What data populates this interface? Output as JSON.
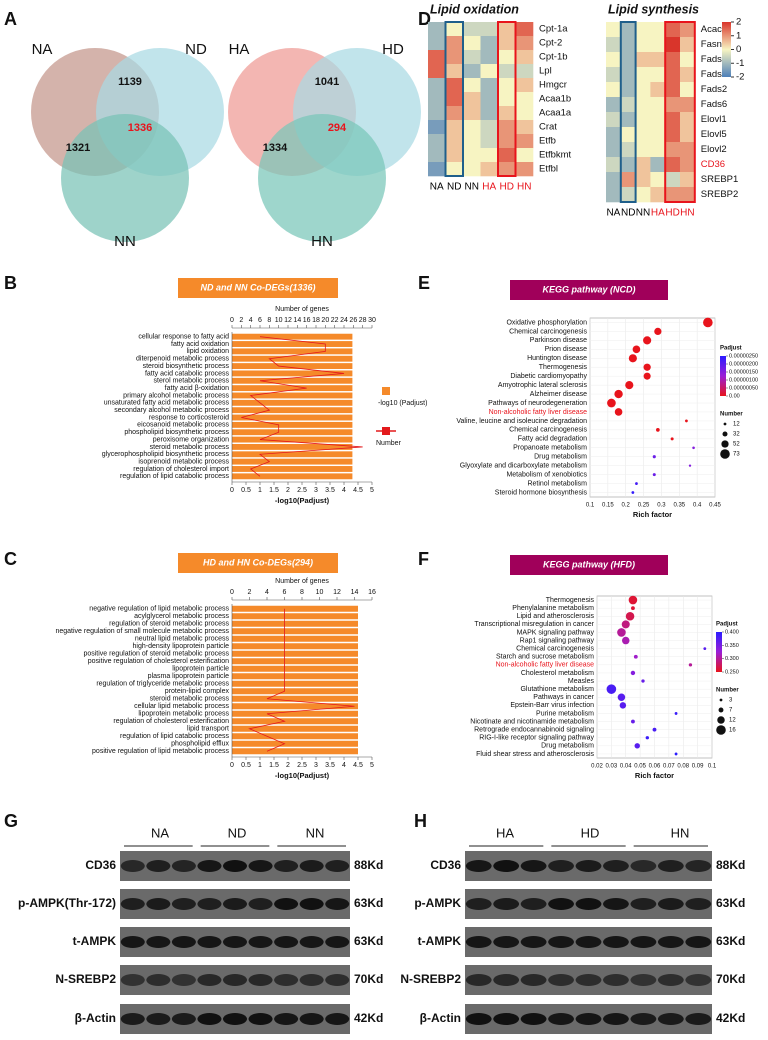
{
  "figure": {
    "panels": [
      "A",
      "B",
      "C",
      "D",
      "E",
      "F",
      "G",
      "H"
    ]
  },
  "venn": [
    {
      "labels": [
        "NA",
        "ND",
        "NN"
      ],
      "values": [
        1139,
        1336,
        1321
      ],
      "colors": [
        "#c4968a",
        "#a9d9e3",
        "#79c2b5"
      ],
      "center_color": "#e8141c"
    },
    {
      "labels": [
        "HA",
        "HD",
        "HN"
      ],
      "values": [
        1041,
        294,
        1334
      ],
      "colors": [
        "#ef9a94",
        "#a9d9e3",
        "#79c6b9"
      ],
      "center_color": "#e8141c"
    }
  ],
  "heatmaps": {
    "columns": [
      "NA",
      "ND",
      "NN",
      "HA",
      "HD",
      "HN"
    ],
    "column_colors": [
      "#000000",
      "#000000",
      "#000000",
      "#e8141c",
      "#e8141c",
      "#e8141c"
    ],
    "clim": [
      -2,
      2
    ],
    "cticks": [
      2,
      1,
      0,
      -1,
      -2
    ],
    "colormap": [
      "#4d7fb8",
      "#f7f4c2",
      "#d9352b"
    ],
    "maps": [
      {
        "title": "Lipid oxidation",
        "rows": [
          "Cpt-1a",
          "Cpt-2",
          "Cpt-1b",
          "Lpl",
          "Hmgcr",
          "Acaa1b",
          "Acaa1a",
          "Crat",
          "Etfb",
          "Etfbkmt",
          "Etfbl"
        ],
        "values": [
          [
            -1,
            0,
            -0.5,
            -0.5,
            0.5,
            1.5
          ],
          [
            -1,
            1,
            0,
            -1,
            0.5,
            1
          ],
          [
            1.5,
            1,
            -0.5,
            -1,
            0,
            0.5
          ],
          [
            1.5,
            0.5,
            -1,
            0,
            -0.5,
            -0.5
          ],
          [
            -1,
            1.5,
            0,
            -1,
            0,
            0.5
          ],
          [
            -1,
            1.5,
            0.5,
            -1,
            0,
            0
          ],
          [
            -1,
            1,
            0.5,
            -1,
            0.5,
            0
          ],
          [
            -1.5,
            0.5,
            0,
            -0.5,
            1,
            0.5
          ],
          [
            -1,
            0.5,
            0,
            -0.5,
            1,
            1
          ],
          [
            -1,
            0.5,
            0,
            0,
            1.5,
            0
          ],
          [
            -1.5,
            0,
            0,
            0.5,
            1,
            1
          ]
        ]
      },
      {
        "title": "Lipid synthesis",
        "rows": [
          "Acaca",
          "Fasn",
          "Fads1",
          "Fads3",
          "Fads2",
          "Fads6",
          "Elovl1",
          "Elovl5",
          "Elovl2",
          "CD36",
          "SREBP1",
          "SREBP2"
        ],
        "values": [
          [
            0,
            -1,
            0,
            0,
            1.5,
            1
          ],
          [
            -0.5,
            -1,
            0,
            0,
            2,
            0.5
          ],
          [
            0,
            -1,
            0.5,
            0.5,
            1.5,
            0
          ],
          [
            -0.5,
            -1,
            0,
            0,
            1.5,
            0.5
          ],
          [
            0,
            -1,
            0,
            0.5,
            1.5,
            0
          ],
          [
            -1,
            -0.5,
            0,
            0,
            1,
            1
          ],
          [
            -0.5,
            -1,
            0,
            0,
            1.5,
            0.5
          ],
          [
            -1,
            0,
            0,
            0,
            1.5,
            0.5
          ],
          [
            -1,
            -0.5,
            0,
            0,
            1,
            1
          ],
          [
            -0.5,
            -1,
            0.5,
            -1,
            1.5,
            1
          ],
          [
            -1,
            1,
            0.5,
            0,
            -0.5,
            0.5
          ],
          [
            -1,
            -0.5,
            0,
            0.5,
            1,
            1
          ]
        ],
        "highlight_index": 9,
        "highlight_color": "#e8141c"
      }
    ]
  },
  "chart_data": [
    {
      "type": "bar",
      "orientation": "horizontal",
      "title": "ND and NN Co-DEGs(1336)",
      "title_color": "#f58a2a",
      "categories": [
        "cellular response to fatty acid",
        "fatty acid oxidation",
        "lipid oxidation",
        "diterpenoid metabolic process",
        "steroid biosynthetic process",
        "fatty acid catabolic process",
        "sterol metabolic process",
        "fatty acid β-oxidation",
        "primary alcohol metabolic process",
        "unsaturated fatty acid metabolic process",
        "secondary alcohol metabolic process",
        "response to corticosteroid",
        "eicosanoid metabolic process",
        "phospholipid biosynthetic process",
        "peroxisome organization",
        "steroid metabolic process",
        "glycerophospholipid biosynthetic process",
        "isoprenoid metabolic process",
        "regulation of cholesterol import",
        "regulation of lipid catabolic process"
      ],
      "series": [
        {
          "name": "-log10 (Padjust)",
          "color": "#f58a2a",
          "values": [
            4.3,
            4.3,
            4.3,
            4.3,
            4.3,
            4.3,
            4.3,
            4.3,
            4.3,
            4.3,
            4.3,
            4.3,
            4.3,
            4.3,
            4.3,
            4.3,
            4.3,
            4.3,
            4.3,
            4.3
          ]
        },
        {
          "name": "Number",
          "color": "#e31a1c",
          "axis": "x2",
          "values": [
            6,
            20,
            20,
            8,
            10,
            24,
            6,
            16,
            4,
            6,
            8,
            2,
            10,
            10,
            6,
            28,
            6,
            8,
            4,
            6
          ]
        }
      ],
      "xlim": [
        0,
        5
      ],
      "xticks": [
        0,
        0.5,
        1,
        1.5,
        2,
        2.5,
        3,
        3.5,
        4,
        4.5,
        5
      ],
      "xlabel": "-log10(Padjust)",
      "x2lim": [
        0,
        30
      ],
      "x2ticks": [
        0,
        2,
        4,
        6,
        8,
        10,
        12,
        14,
        16,
        18,
        20,
        22,
        24,
        26,
        28,
        30
      ],
      "x2label": "Number of genes",
      "legend": true
    },
    {
      "type": "bar",
      "orientation": "horizontal",
      "title": "HD and HN Co-DEGs(294)",
      "title_color": "#f58a2a",
      "categories": [
        "negative regulation of lipid metabolic process",
        "acylglycerol metabolic process",
        "regulation of steroid metabolic process",
        "negative regulation of small molecule metabolic process",
        "neutral lipid metabolic process",
        "high-density lipoprotein particle",
        "positive regulation of steroid metabolic process",
        "positive regulation of cholesterol esterification",
        "lipoprotein particle",
        "plasma lipoprotein particle",
        "regulation of triglyceride metabolic process",
        "protein-lipid complex",
        "steroid metabolic process",
        "cellular lipid metabolic process",
        "lipoprotein metabolic process",
        "regulation of cholesterol esterification",
        "lipid transport",
        "regulation of lipid catabolic process",
        "phospholipid efflux",
        "positive regulation of lipid metabolic process"
      ],
      "series": [
        {
          "name": "-log10 (Padjust)",
          "color": "#f58a2a",
          "values": [
            4.5,
            4.5,
            4.5,
            4.5,
            4.5,
            4.5,
            4.5,
            4.5,
            4.5,
            4.5,
            4.5,
            4.5,
            4.5,
            4.5,
            4.5,
            4.5,
            4.5,
            4.5,
            4.5,
            4.5
          ]
        },
        {
          "name": "Number",
          "color": "#e31a1c",
          "axis": "x2",
          "values": [
            6,
            6,
            6,
            6,
            6,
            6,
            6,
            6,
            6,
            6,
            6,
            6,
            4,
            14,
            4,
            6,
            2,
            4,
            6,
            4
          ]
        }
      ],
      "xlim": [
        0,
        5
      ],
      "xticks": [
        0,
        0.5,
        1,
        1.5,
        2,
        2.5,
        3,
        3.5,
        4,
        4.5,
        5
      ],
      "xlabel": "-log10(Padjust)",
      "x2lim": [
        0,
        16
      ],
      "x2ticks": [
        0,
        2,
        4,
        6,
        8,
        10,
        12,
        14,
        16
      ],
      "x2label": "Number of genes",
      "legend": false
    },
    {
      "type": "scatter",
      "title": "KEGG pathway (NCD)",
      "title_color": "#a0005a",
      "categories": [
        "Oxidative phosphorylation",
        "Chemical carcinogenesis",
        "Parkinson disease",
        "Prion disease",
        "Huntington disease",
        "Thermogenesis",
        "Diabetic cardiomyopathy",
        "Amyotrophic lateral sclerosis",
        "Alzheimer disease",
        "Pathways of neurodegeneration",
        "Non-alcoholic fatty liver disease",
        "Valine, leucine and isoleucine degradation",
        "Chemical carcinogenesis",
        "Fatty acid degradation",
        "Propanoate metabolism",
        "Drug metabolism",
        "Glyoxylate and dicarboxylate metabolism",
        "Metabolism of xenobiotics",
        "Retinol metabolism",
        "Steroid hormone biosynthesis"
      ],
      "x": [
        0.43,
        0.29,
        0.26,
        0.23,
        0.22,
        0.26,
        0.26,
        0.21,
        0.18,
        0.16,
        0.18,
        0.37,
        0.29,
        0.33,
        0.39,
        0.28,
        0.38,
        0.28,
        0.23,
        0.22
      ],
      "sizes": [
        73,
        52,
        60,
        55,
        60,
        52,
        50,
        60,
        62,
        65,
        55,
        12,
        20,
        14,
        10,
        15,
        8,
        14,
        12,
        12
      ],
      "padjust": [
        0,
        0,
        0,
        0,
        0,
        0,
        0,
        0,
        0,
        0,
        0,
        0,
        0,
        0,
        1.5e-06,
        1.8e-06,
        1.5e-06,
        1.8e-06,
        2.2e-06,
        2.4e-06
      ],
      "xlim": [
        0.1,
        0.45
      ],
      "xticks": [
        0.1,
        0.15,
        0.2,
        0.25,
        0.3,
        0.35,
        0.4,
        0.45
      ],
      "xlabel": "Rich factor",
      "grid": true,
      "highlight_index": 10,
      "highlight_color": "#e8141c",
      "color_legend": {
        "title": "Padjust",
        "lim": [
          0,
          2.5e-06
        ],
        "colormap": [
          "#e8141c",
          "#9b1fd6",
          "#2b1cff"
        ],
        "ticks": [
          {
            "value": 2.5e-06,
            "label": "0.00000250"
          },
          {
            "value": 2e-06,
            "label": "0.00000200"
          },
          {
            "value": 1.5e-06,
            "label": "0.00000150"
          },
          {
            "value": 1e-06,
            "label": "0.00000100"
          },
          {
            "value": 5e-07,
            "label": "0.00000050"
          },
          {
            "value": 0,
            "label": "0.00"
          }
        ]
      },
      "size_legend": {
        "title": "Number",
        "values": [
          12,
          32,
          52,
          73
        ]
      }
    },
    {
      "type": "scatter",
      "title": "KEGG pathway (HFD)",
      "title_color": "#a0005a",
      "categories": [
        "Thermogenesis",
        "Phenylalanine metabolism",
        "Lipid and atherosclerosis",
        "Transcriptional misregulation in cancer",
        "MAPK signaling pathway",
        "Rap1 signaling pathway",
        "Chemical carcinogenesis",
        "Starch and sucrose metabolism",
        "Non-alcoholic fatty liver disease",
        "Cholesterol metabolism",
        "Measles",
        "Glutathione metabolism",
        "Pathways in cancer",
        "Epstein-Barr virus infection",
        "Purine metabolism",
        "Nicotinate and nicotinamide metabolism",
        "Retrograde endocannabinoid signaling",
        "RIG-I-like receptor signaling pathway",
        "Drug metabolism",
        "Fluid shear stress and atherosclerosis"
      ],
      "x": [
        0.045,
        0.045,
        0.043,
        0.04,
        0.037,
        0.04,
        0.095,
        0.047,
        0.085,
        0.045,
        0.052,
        0.03,
        0.037,
        0.038,
        0.075,
        0.045,
        0.06,
        0.055,
        0.048,
        0.075
      ],
      "sizes": [
        14,
        5,
        14,
        13,
        14,
        12,
        3,
        5,
        4,
        6,
        4,
        16,
        12,
        10,
        3,
        5,
        5,
        4,
        8,
        3
      ],
      "padjust": [
        0.26,
        0.26,
        0.27,
        0.29,
        0.3,
        0.31,
        0.37,
        0.32,
        0.3,
        0.34,
        0.36,
        0.38,
        0.37,
        0.37,
        0.39,
        0.36,
        0.38,
        0.39,
        0.37,
        0.4
      ],
      "xlim": [
        0.02,
        0.1
      ],
      "xticks": [
        0.02,
        0.03,
        0.04,
        0.05,
        0.06,
        0.07,
        0.08,
        0.09,
        0.1
      ],
      "xlabel": "Rich factor",
      "grid": true,
      "highlight_index": 8,
      "highlight_color": "#e8141c",
      "color_legend": {
        "title": "Padjust",
        "lim": [
          0.25,
          0.4
        ],
        "colormap": [
          "#e8141c",
          "#9b1fd6",
          "#2b1cff"
        ],
        "ticks": [
          {
            "value": 0.4,
            "label": "0.400"
          },
          {
            "value": 0.35,
            "label": "0.350"
          },
          {
            "value": 0.3,
            "label": "0.300"
          },
          {
            "value": 0.25,
            "label": "0.250"
          }
        ]
      },
      "size_legend": {
        "title": "Number",
        "values": [
          3,
          7,
          12,
          16
        ]
      }
    }
  ],
  "blots": [
    {
      "groups": [
        "NA",
        "ND",
        "NN"
      ],
      "rows": [
        {
          "label": "CD36",
          "size": "88Kd"
        },
        {
          "label": "p-AMPK(Thr-172)",
          "size": "63Kd"
        },
        {
          "label": "t-AMPK",
          "size": "63Kd"
        },
        {
          "label": "N-SREBP2",
          "size": "70Kd"
        },
        {
          "label": "β-Actin",
          "size": "42Kd"
        }
      ]
    },
    {
      "groups": [
        "HA",
        "HD",
        "HN"
      ],
      "rows": [
        {
          "label": "CD36",
          "size": "88Kd"
        },
        {
          "label": "p-AMPK",
          "size": "63Kd"
        },
        {
          "label": "t-AMPK",
          "size": "63Kd"
        },
        {
          "label": "N-SREBP2",
          "size": "70Kd"
        },
        {
          "label": "β-Actin",
          "size": "42Kd"
        }
      ]
    }
  ]
}
